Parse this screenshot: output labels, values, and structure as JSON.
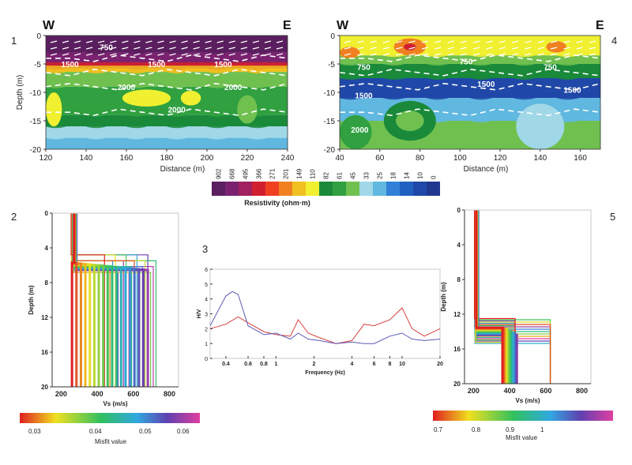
{
  "panel_numbers": [
    "1",
    "2",
    "3",
    "4",
    "5"
  ],
  "colors": {
    "frame": "#c8c8c8",
    "axis": "#333333",
    "contour": "#ffffff",
    "hv_red": "#d84040",
    "hv_blue": "#5b5bb8"
  },
  "resistivity_scale": {
    "values": [
      "902",
      "668",
      "495",
      "366",
      "271",
      "201",
      "149",
      "110",
      "82",
      "61",
      "45",
      "33",
      "25",
      "18",
      "14",
      "10",
      "0"
    ],
    "colors": [
      "#5a1f5e",
      "#7a2270",
      "#a02060",
      "#d02030",
      "#f04020",
      "#f08020",
      "#f0c020",
      "#f0f030",
      "#1a8a3a",
      "#30a040",
      "#70c050",
      "#a0d8e8",
      "#60b8e0",
      "#3080d8",
      "#2060c0",
      "#2048a8",
      "#203890"
    ],
    "label": "Resistivity (ohm·m)"
  },
  "misfit_bar_left": {
    "ticks": [
      "0.03",
      "0.04",
      "0.05",
      "0.06"
    ],
    "label": "Misfit value"
  },
  "misfit_bar_right": {
    "ticks": [
      "0.7",
      "0.8",
      "0.9",
      "1"
    ],
    "label": "Misfit value"
  },
  "chart_data": [
    {
      "type": "heatmap",
      "panel": "1",
      "dir_left": "W",
      "dir_right": "E",
      "xlabel": "Distance (m)",
      "ylabel": "Depth (m)",
      "xlim": [
        120,
        240
      ],
      "ylim": [
        -20,
        0
      ],
      "xticks": [
        120,
        140,
        160,
        180,
        200,
        220,
        240
      ],
      "yticks": [
        0,
        -5,
        -10,
        -15,
        -20
      ],
      "layers": [
        {
          "top": 0,
          "bottom": -3,
          "color": "#5a1f5e"
        },
        {
          "top": -3,
          "bottom": -5,
          "color": "#7a2270"
        },
        {
          "top": -5,
          "bottom": -5.8,
          "color": "#d02030"
        },
        {
          "top": -5.8,
          "bottom": -6.4,
          "color": "#f0c020"
        },
        {
          "top": -6.4,
          "bottom": -9,
          "color": "#70c050"
        },
        {
          "top": -9,
          "bottom": -14,
          "color": "#30a040"
        },
        {
          "top": -14,
          "bottom": -16,
          "color": "#1a8a3a"
        },
        {
          "top": -16,
          "bottom": -18,
          "color": "#a0d8e8"
        },
        {
          "top": -18,
          "bottom": -20,
          "color": "#60b8e0"
        }
      ],
      "blobs": [
        {
          "x": 170,
          "y": -11,
          "rx": 12,
          "ry": 1.5,
          "color": "#f0f030"
        },
        {
          "x": 192,
          "y": -11,
          "rx": 5,
          "ry": 1.3,
          "color": "#f0f030"
        },
        {
          "x": 220,
          "y": -13,
          "rx": 5,
          "ry": 2.5,
          "color": "#70c050"
        },
        {
          "x": 124,
          "y": -13,
          "rx": 4,
          "ry": 3,
          "color": "#f0f030"
        }
      ],
      "contour_labels": [
        {
          "text": "750",
          "x": 150,
          "y": -2
        },
        {
          "text": "1500",
          "x": 132,
          "y": -5
        },
        {
          "text": "1500",
          "x": 175,
          "y": -5
        },
        {
          "text": "1500",
          "x": 208,
          "y": -5
        },
        {
          "text": "2000",
          "x": 160,
          "y": -9
        },
        {
          "text": "2000",
          "x": 213,
          "y": -9
        },
        {
          "text": "2000",
          "x": 185,
          "y": -13
        }
      ]
    },
    {
      "type": "heatmap",
      "panel": "4",
      "dir_left": "W",
      "dir_right": "E",
      "xlabel": "Distance (m)",
      "ylabel": "",
      "xlim": [
        40,
        170
      ],
      "ylim": [
        -20,
        0
      ],
      "xticks": [
        40,
        60,
        80,
        100,
        120,
        140,
        160
      ],
      "yticks": [
        0,
        -5,
        -10,
        -15,
        -20
      ],
      "layers": [
        {
          "top": 0,
          "bottom": -3.5,
          "color": "#f0f030"
        },
        {
          "top": -3.5,
          "bottom": -5,
          "color": "#70c050"
        },
        {
          "top": -5,
          "bottom": -7.5,
          "color": "#1a8a3a"
        },
        {
          "top": -7.5,
          "bottom": -11,
          "color": "#2048a8"
        },
        {
          "top": -11,
          "bottom": -15,
          "color": "#60b8e0"
        },
        {
          "top": -15,
          "bottom": -20,
          "color": "#70c050"
        }
      ],
      "blobs": [
        {
          "x": 75,
          "y": -2,
          "rx": 8,
          "ry": 1.5,
          "color": "#f08020"
        },
        {
          "x": 75,
          "y": -2,
          "rx": 3,
          "ry": 0.6,
          "color": "#d02030"
        },
        {
          "x": 45,
          "y": -3,
          "rx": 5,
          "ry": 1,
          "color": "#f08020"
        },
        {
          "x": 148,
          "y": -2,
          "rx": 5,
          "ry": 1,
          "color": "#f08020"
        },
        {
          "x": 75,
          "y": -15,
          "rx": 13,
          "ry": 3.5,
          "color": "#1a8a3a"
        },
        {
          "x": 75,
          "y": -15,
          "rx": 7,
          "ry": 1.8,
          "color": "#70c050"
        },
        {
          "x": 140,
          "y": -16,
          "rx": 12,
          "ry": 4,
          "color": "#a0d8e8"
        },
        {
          "x": 48,
          "y": -17,
          "rx": 8,
          "ry": 3,
          "color": "#30a040"
        }
      ],
      "contour_labels": [
        {
          "text": "750",
          "x": 52,
          "y": -5.5
        },
        {
          "text": "750",
          "x": 103,
          "y": -4.5
        },
        {
          "text": "750",
          "x": 145,
          "y": -5.5
        },
        {
          "text": "1500",
          "x": 113,
          "y": -8.5
        },
        {
          "text": "1500",
          "x": 52,
          "y": -10.5
        },
        {
          "text": "1500",
          "x": 156,
          "y": -9.5
        },
        {
          "text": "2000",
          "x": 50,
          "y": -16.5
        }
      ]
    },
    {
      "type": "line",
      "panel": "2",
      "xlabel": "Vs (m/s)",
      "ylabel": "Depth (m)",
      "xlim": [
        150,
        850
      ],
      "ylim": [
        20,
        0
      ],
      "xticks": [
        200,
        400,
        600,
        800
      ],
      "yticks": [
        0,
        4,
        8,
        12,
        16,
        20
      ],
      "profile_family": {
        "vs1": [
          255,
          290
        ],
        "vs2": [
          440,
          740
        ],
        "depth_break": [
          4.8,
          7.5
        ],
        "fill_range": [
          260,
          680
        ],
        "misfit_range": [
          0.03,
          0.06
        ],
        "count": 20
      }
    },
    {
      "type": "line",
      "panel": "3",
      "xlabel": "Frequency (Hz)",
      "ylabel": "H/V",
      "xlim": [
        0.3,
        20
      ],
      "ylim": [
        0,
        6
      ],
      "xscale": "log",
      "xticks": [
        0.4,
        0.6,
        0.8,
        1,
        2,
        4,
        6,
        8,
        10,
        20
      ],
      "yticks": [
        0,
        1,
        2,
        3,
        4,
        5,
        6
      ],
      "series": [
        {
          "color": "#d84040",
          "x": [
            0.3,
            0.4,
            0.5,
            0.6,
            0.8,
            1.0,
            1.3,
            1.5,
            1.8,
            2.2,
            3,
            4,
            5,
            6,
            8,
            10,
            12,
            15,
            20
          ],
          "y": [
            2.0,
            2.3,
            2.8,
            2.4,
            1.8,
            1.6,
            1.5,
            2.6,
            1.7,
            1.4,
            1.0,
            1.2,
            2.3,
            2.2,
            2.6,
            3.4,
            2.0,
            1.5,
            2.0
          ]
        },
        {
          "color": "#5b5bb8",
          "x": [
            0.3,
            0.4,
            0.45,
            0.5,
            0.6,
            0.8,
            1.0,
            1.3,
            1.5,
            1.8,
            2.2,
            3,
            4,
            5,
            6,
            8,
            10,
            12,
            15,
            20
          ],
          "y": [
            2.2,
            4.2,
            4.5,
            4.3,
            2.2,
            1.6,
            1.7,
            1.3,
            1.7,
            1.3,
            1.2,
            1.0,
            1.1,
            1.0,
            1.0,
            1.5,
            1.7,
            1.3,
            1.2,
            1.3
          ]
        }
      ]
    },
    {
      "type": "line",
      "panel": "5",
      "xlabel": "Vs (m/s)",
      "ylabel": "Depth (m)",
      "xlim": [
        150,
        850
      ],
      "ylim": [
        20,
        0
      ],
      "xticks": [
        200,
        400,
        600,
        800
      ],
      "yticks": [
        0,
        4,
        8,
        12,
        16,
        20
      ],
      "profile_family": {
        "vs1": [
          205,
          225
        ],
        "vs2": [
          430,
          820
        ],
        "depth_break": [
          12.5,
          15.5
        ],
        "fill_range": [
          360,
          440
        ],
        "misfit_range": [
          0.7,
          1.0
        ],
        "count": 22
      }
    }
  ]
}
